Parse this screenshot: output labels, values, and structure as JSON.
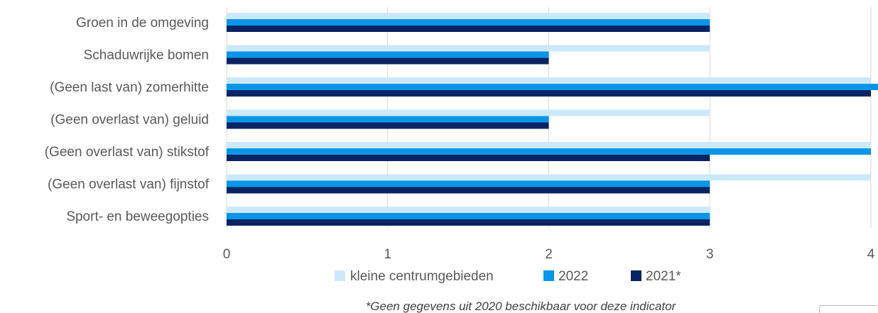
{
  "chart_data": {
    "type": "bar",
    "orientation": "horizontal",
    "categories": [
      "Groen in de omgeving",
      "Schaduwrijke bomen",
      "(Geen last van) zomerhitte",
      "(Geen overlast van) geluid",
      "(Geen overlast van) stikstof",
      "(Geen overlast van) fijnstof",
      "Sport- en beweegopties"
    ],
    "series": [
      {
        "name": "kleine centrumgebieden",
        "color": "#cce9fb",
        "values": [
          3,
          3,
          4,
          3,
          4,
          4,
          3
        ]
      },
      {
        "name": "2022",
        "color": "#0a96e8",
        "values": [
          3,
          2,
          4.05,
          2,
          4,
          3,
          3
        ]
      },
      {
        "name": "2021*",
        "color": "#0a2463",
        "values": [
          3,
          2,
          4,
          2,
          3,
          3,
          3
        ]
      }
    ],
    "xlim": [
      0,
      4
    ],
    "xticks": [
      "0",
      "1",
      "2",
      "3",
      "4"
    ],
    "grid": true,
    "legend_position": "bottom",
    "footnote": "*Geen gegevens uit 2020 beschikbaar voor deze indicator"
  }
}
